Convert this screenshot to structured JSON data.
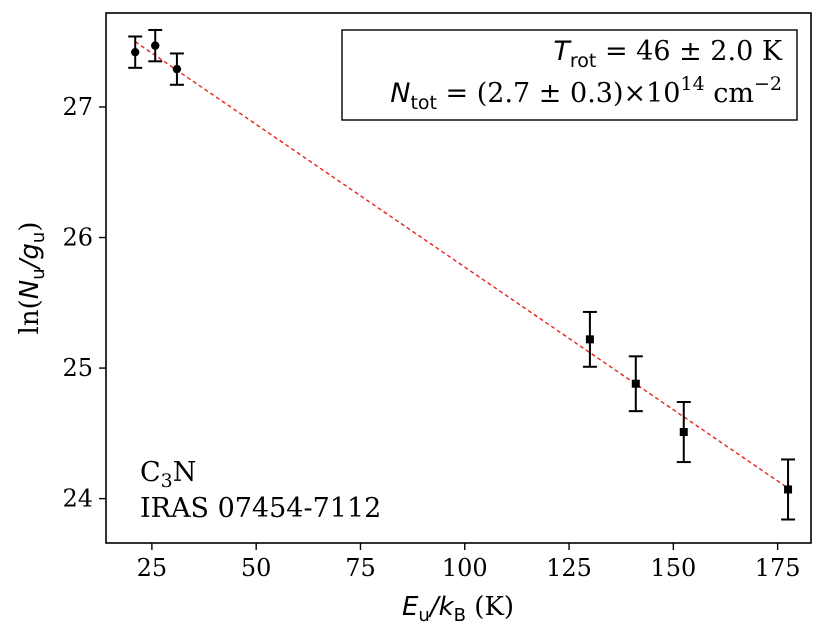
{
  "chart_data": {
    "type": "scatter",
    "xlabel": {
      "var": "E",
      "var_sub": "u",
      "sep": "/",
      "var2": "k",
      "var2_sub": "B",
      "unit": "(K)"
    },
    "ylabel": {
      "prefix": "ln(",
      "var": "N",
      "var_sub": "u",
      "sep": "/",
      "var2": "g",
      "var2_sub": "u",
      "suffix": ")"
    },
    "xlim": [
      14,
      183
    ],
    "ylim": [
      23.66,
      27.72
    ],
    "xticks": [
      25,
      50,
      75,
      100,
      125,
      150,
      175
    ],
    "yticks": [
      24,
      25,
      26,
      27
    ],
    "grid": false,
    "series": [
      {
        "marker": "circle",
        "x": [
          21.0,
          25.8,
          31.0
        ],
        "y": [
          27.42,
          27.47,
          27.29
        ],
        "err": [
          0.12,
          0.12,
          0.12
        ]
      },
      {
        "marker": "square",
        "x": [
          130.0,
          141.0,
          152.5,
          177.5
        ],
        "y": [
          25.22,
          24.88,
          24.51,
          24.07
        ],
        "err": [
          0.21,
          0.21,
          0.23,
          0.23
        ]
      }
    ],
    "fit_line": {
      "x": [
        21.0,
        177.5
      ],
      "y": [
        27.5,
        24.08
      ],
      "color": "#e8221b",
      "style": "dashed"
    },
    "fit_box": {
      "line1": {
        "sym": "T",
        "sub": "rot",
        "text": " = 46 ± 2.0 K"
      },
      "line2": {
        "sym": "N",
        "sub": "tot",
        "text": " = (2.7 ± 0.3)×10",
        "sup": "14",
        "unit": " cm",
        "unit_sup": "−2"
      }
    },
    "annotation": {
      "line1": {
        "text": "C",
        "sub": "3",
        "text2": "N"
      },
      "line2": "IRAS 07454-7112"
    }
  }
}
